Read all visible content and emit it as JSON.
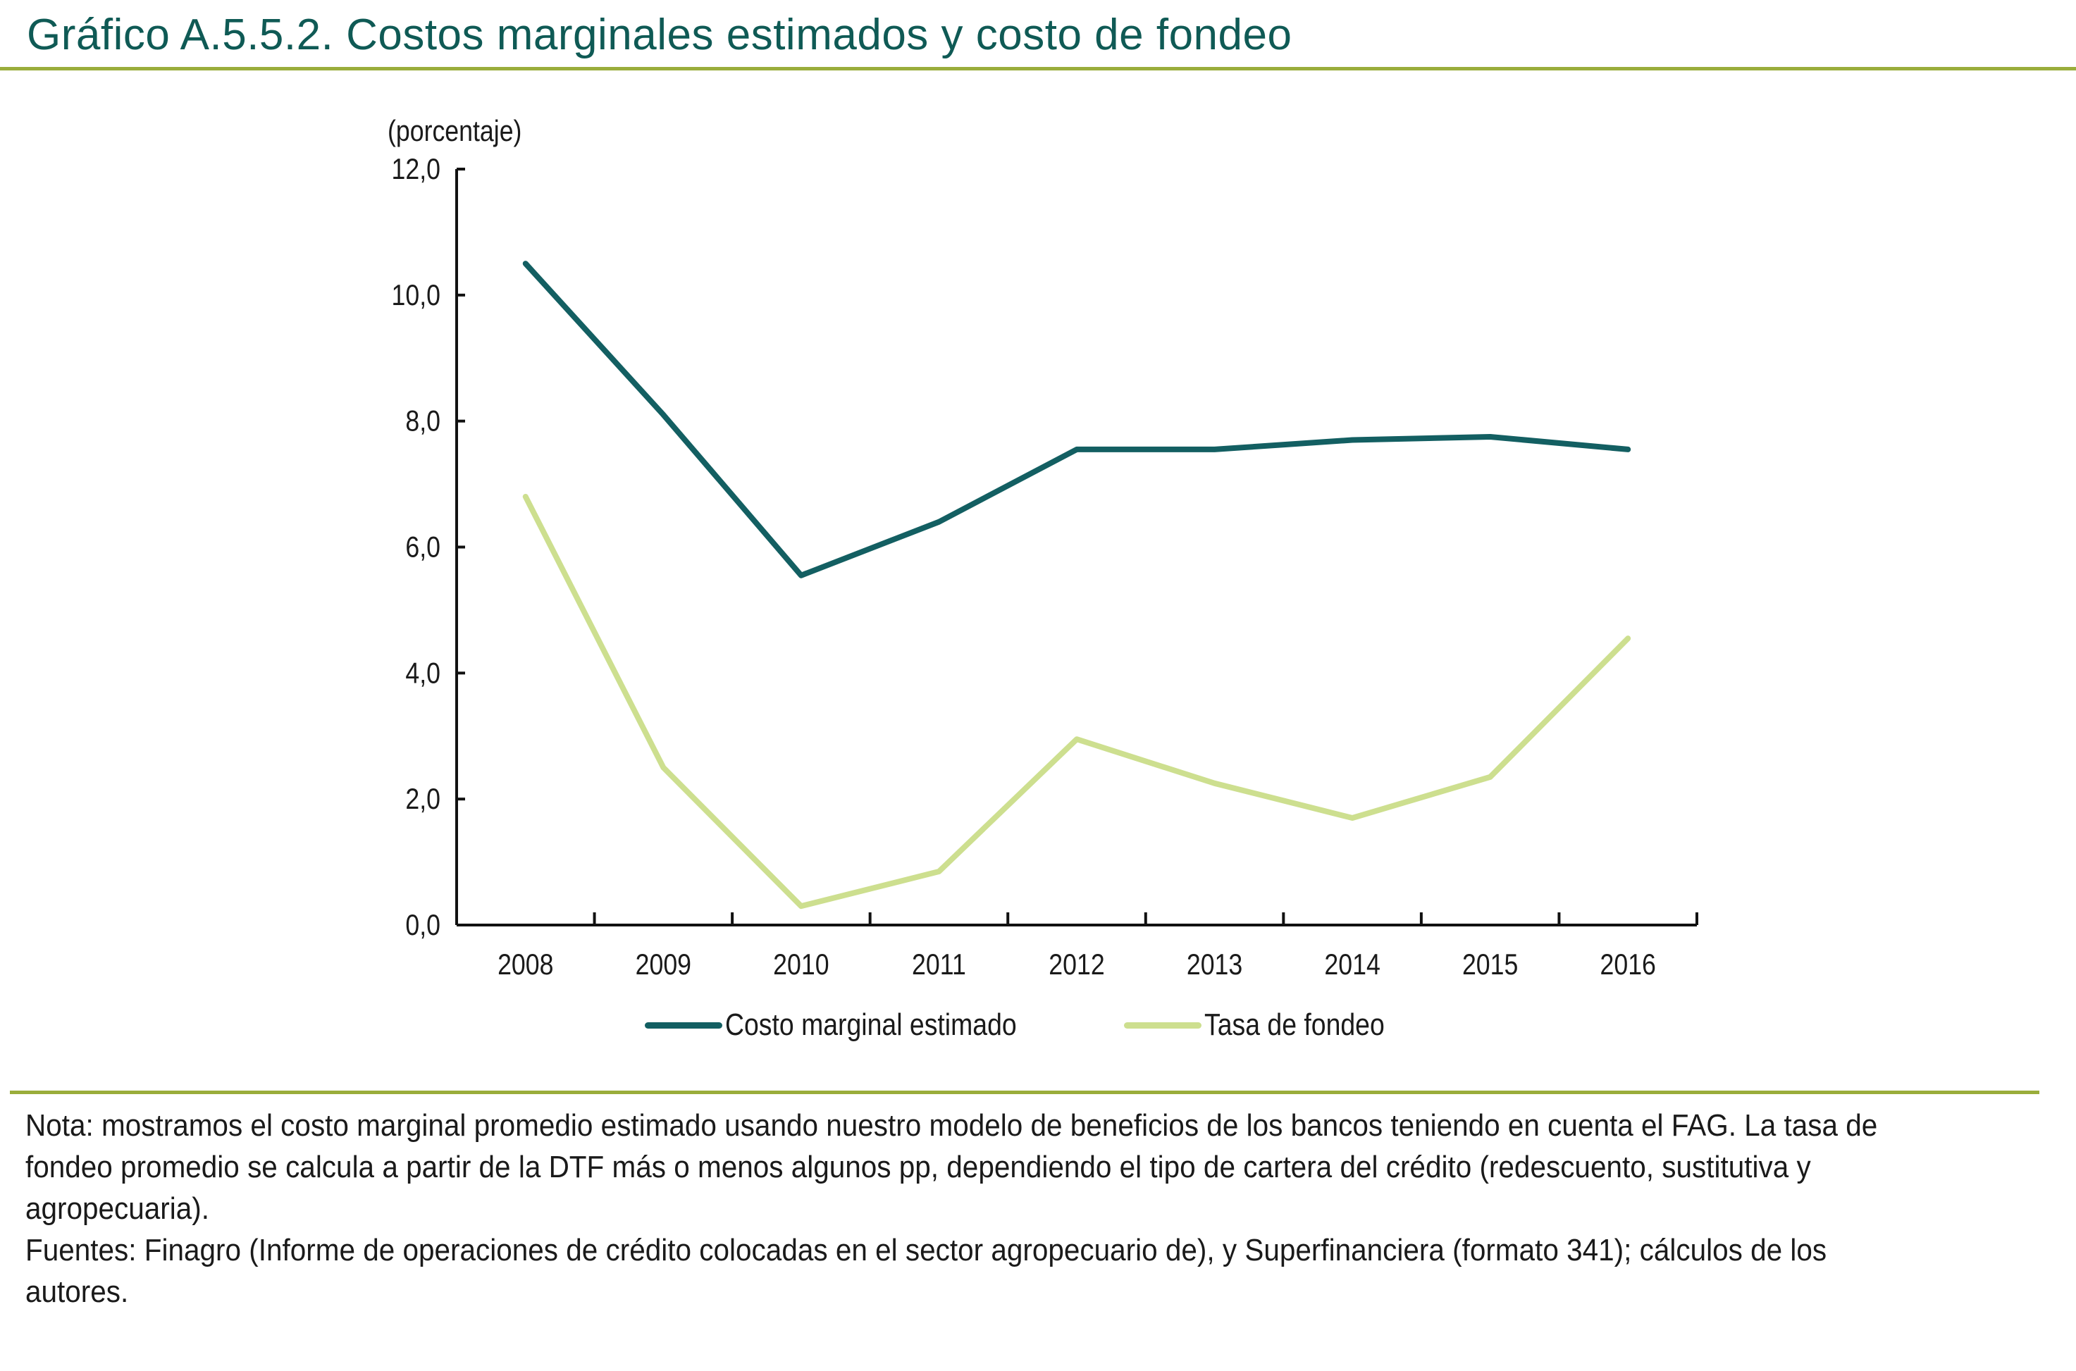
{
  "figure": {
    "title": "Gráfico A.5.5.2. Costos marginales estimados y costo de fondeo"
  },
  "chart_data": {
    "type": "line",
    "title": "Gráfico A.5.5.2. Costos marginales estimados y costo de fondeo",
    "ylabel": "(porcentaje)",
    "xlabel": "",
    "categories": [
      "2008",
      "2009",
      "2010",
      "2011",
      "2012",
      "2013",
      "2014",
      "2015",
      "2016"
    ],
    "ylim": [
      0,
      12
    ],
    "yticks": [
      "0,0",
      "2,0",
      "4,0",
      "6,0",
      "8,0",
      "10,0",
      "12,0"
    ],
    "grid": false,
    "legend_position": "bottom",
    "series": [
      {
        "name": "Costo marginal estimado",
        "color": "#135f62",
        "values": [
          10.5,
          8.1,
          5.55,
          6.4,
          7.55,
          7.55,
          7.7,
          7.75,
          7.55
        ]
      },
      {
        "name": "Tasa de fondeo",
        "color": "#cddf8f",
        "values": [
          6.8,
          2.5,
          0.3,
          0.85,
          2.95,
          2.25,
          1.7,
          2.35,
          4.55
        ]
      }
    ]
  },
  "notes": {
    "nota": "Nota: mostramos el costo marginal promedio estimado usando nuestro modelo de beneficios de los bancos teniendo en cuenta el FAG. La tasa de fondeo promedio se calcula a partir de la DTF más o menos algunos pp, dependiendo el tipo de cartera del crédito (redescuento, sustitutiva y agropecuaria).",
    "fuentes": "Fuentes: Finagro (Informe de operaciones de crédito colocadas en el sector agropecuario de), y Superfinanciera (formato 341); cálculos de los autores."
  }
}
